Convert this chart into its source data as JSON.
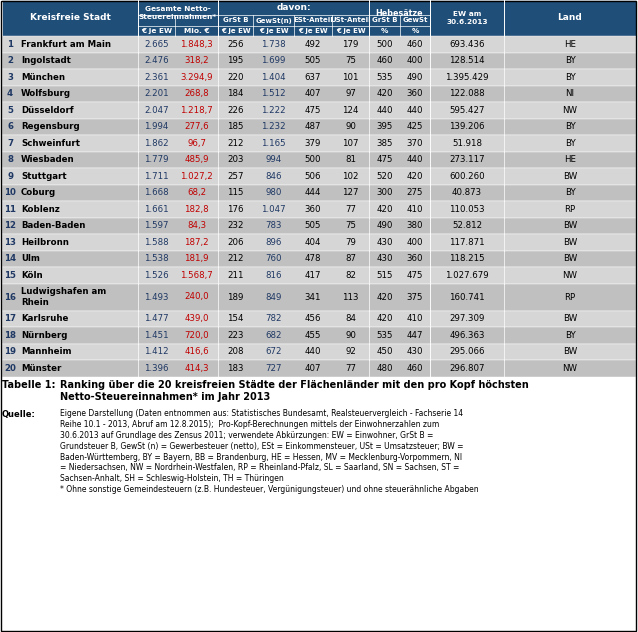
{
  "header_bg": "#1F4E79",
  "header_text": "#FFFFFF",
  "subheader_bg": "#2E75B6",
  "row_odd_bg": "#D6D6D6",
  "row_even_bg": "#C0C0C0",
  "rank_color": "#1F3864",
  "euro_ew_color": "#1F3864",
  "mio_color": "#C00000",
  "gewst_color": "#1F3864",
  "rows": [
    [
      1,
      "Frankfurt am Main",
      "2.665",
      "1.848,3",
      "256",
      "1.738",
      "492",
      "179",
      "500",
      "460",
      "693.436",
      "HE"
    ],
    [
      2,
      "Ingolstadt",
      "2.476",
      "318,2",
      "195",
      "1.699",
      "505",
      "75",
      "460",
      "400",
      "128.514",
      "BY"
    ],
    [
      3,
      "München",
      "2.361",
      "3.294,9",
      "220",
      "1.404",
      "637",
      "101",
      "535",
      "490",
      "1.395.429",
      "BY"
    ],
    [
      4,
      "Wolfsburg",
      "2.201",
      "268,8",
      "184",
      "1.512",
      "407",
      "97",
      "420",
      "360",
      "122.088",
      "NI"
    ],
    [
      5,
      "Düsseldorf",
      "2.047",
      "1.218,7",
      "226",
      "1.222",
      "475",
      "124",
      "440",
      "440",
      "595.427",
      "NW"
    ],
    [
      6,
      "Regensburg",
      "1.994",
      "277,6",
      "185",
      "1.232",
      "487",
      "90",
      "395",
      "425",
      "139.206",
      "BY"
    ],
    [
      7,
      "Schweinfurt",
      "1.862",
      "96,7",
      "212",
      "1.165",
      "379",
      "107",
      "385",
      "370",
      "51.918",
      "BY"
    ],
    [
      8,
      "Wiesbaden",
      "1.779",
      "485,9",
      "203",
      "994",
      "500",
      "81",
      "475",
      "440",
      "273.117",
      "HE"
    ],
    [
      9,
      "Stuttgart",
      "1.711",
      "1.027,2",
      "257",
      "846",
      "506",
      "102",
      "520",
      "420",
      "600.260",
      "BW"
    ],
    [
      10,
      "Coburg",
      "1.668",
      "68,2",
      "115",
      "980",
      "444",
      "127",
      "300",
      "275",
      "40.873",
      "BY"
    ],
    [
      11,
      "Koblenz",
      "1.661",
      "182,8",
      "176",
      "1.047",
      "360",
      "77",
      "420",
      "410",
      "110.053",
      "RP"
    ],
    [
      12,
      "Baden-Baden",
      "1.597",
      "84,3",
      "232",
      "783",
      "505",
      "75",
      "490",
      "380",
      "52.812",
      "BW"
    ],
    [
      13,
      "Heilbronn",
      "1.588",
      "187,2",
      "206",
      "896",
      "404",
      "79",
      "430",
      "400",
      "117.871",
      "BW"
    ],
    [
      14,
      "Ulm",
      "1.538",
      "181,9",
      "212",
      "760",
      "478",
      "87",
      "430",
      "360",
      "118.215",
      "BW"
    ],
    [
      15,
      "Köln",
      "1.526",
      "1.568,7",
      "211",
      "816",
      "417",
      "82",
      "515",
      "475",
      "1.027.679",
      "NW"
    ],
    [
      16,
      "Ludwigshafen am\nRhein",
      "1.493",
      "240,0",
      "189",
      "849",
      "341",
      "113",
      "420",
      "375",
      "160.741",
      "RP"
    ],
    [
      17,
      "Karlsruhe",
      "1.477",
      "439,0",
      "154",
      "782",
      "456",
      "84",
      "420",
      "410",
      "297.309",
      "BW"
    ],
    [
      18,
      "Nürnberg",
      "1.451",
      "720,0",
      "223",
      "682",
      "455",
      "90",
      "535",
      "447",
      "496.363",
      "BY"
    ],
    [
      19,
      "Mannheim",
      "1.412",
      "416,6",
      "208",
      "672",
      "440",
      "92",
      "450",
      "430",
      "295.066",
      "BW"
    ],
    [
      20,
      "Münster",
      "1.396",
      "414,3",
      "183",
      "727",
      "407",
      "77",
      "480",
      "460",
      "296.807",
      "NW"
    ]
  ],
  "table_caption": "Tabelle 1:",
  "table_title": "Ranking über die 20 kreisfreien Städte der Flächenländer mit den pro Kopf höchsten\nNetto-Steuereinnahmen* im Jahr 2013",
  "source_label": "Quelle:",
  "source_text": "Eigene Darstellung (Daten entnommen aus: Statistisches Bundesamt, Realsteuervergleich - Fachserie 14\nReihe 10.1 - 2013, Abruf am 12.8.2015);  Pro-Kopf-Berechnungen mittels der Einwohnerzahlen zum\n30.6.2013 auf Grundlage des Zensus 2011; verwendete Abkürzungen: EW = Einwohner, GrSt B =\nGrundsteuer B, GewSt (n) = Gewerbesteuer (netto), ESt = Einkommensteuer, USt = Umsatzsteuer; BW =\nBaden-Württemberg, BY = Bayern, BB = Brandenburg, HE = Hessen, MV = Mecklenburg-Vorpommern, NI\n= Niedersachsen, NW = Nordrhein-Westfalen, RP = Rheinland-Pfalz, SL = Saarland, SN = Sachsen, ST =\nSachsen-Anhalt, SH = Schleswig-Holstein, TH = Thüringen\n* Ohne sonstige Gemeindesteuern (z.B. Hundesteuer, Vergünigungsteuer) und ohne steuerähnliche Abgaben"
}
